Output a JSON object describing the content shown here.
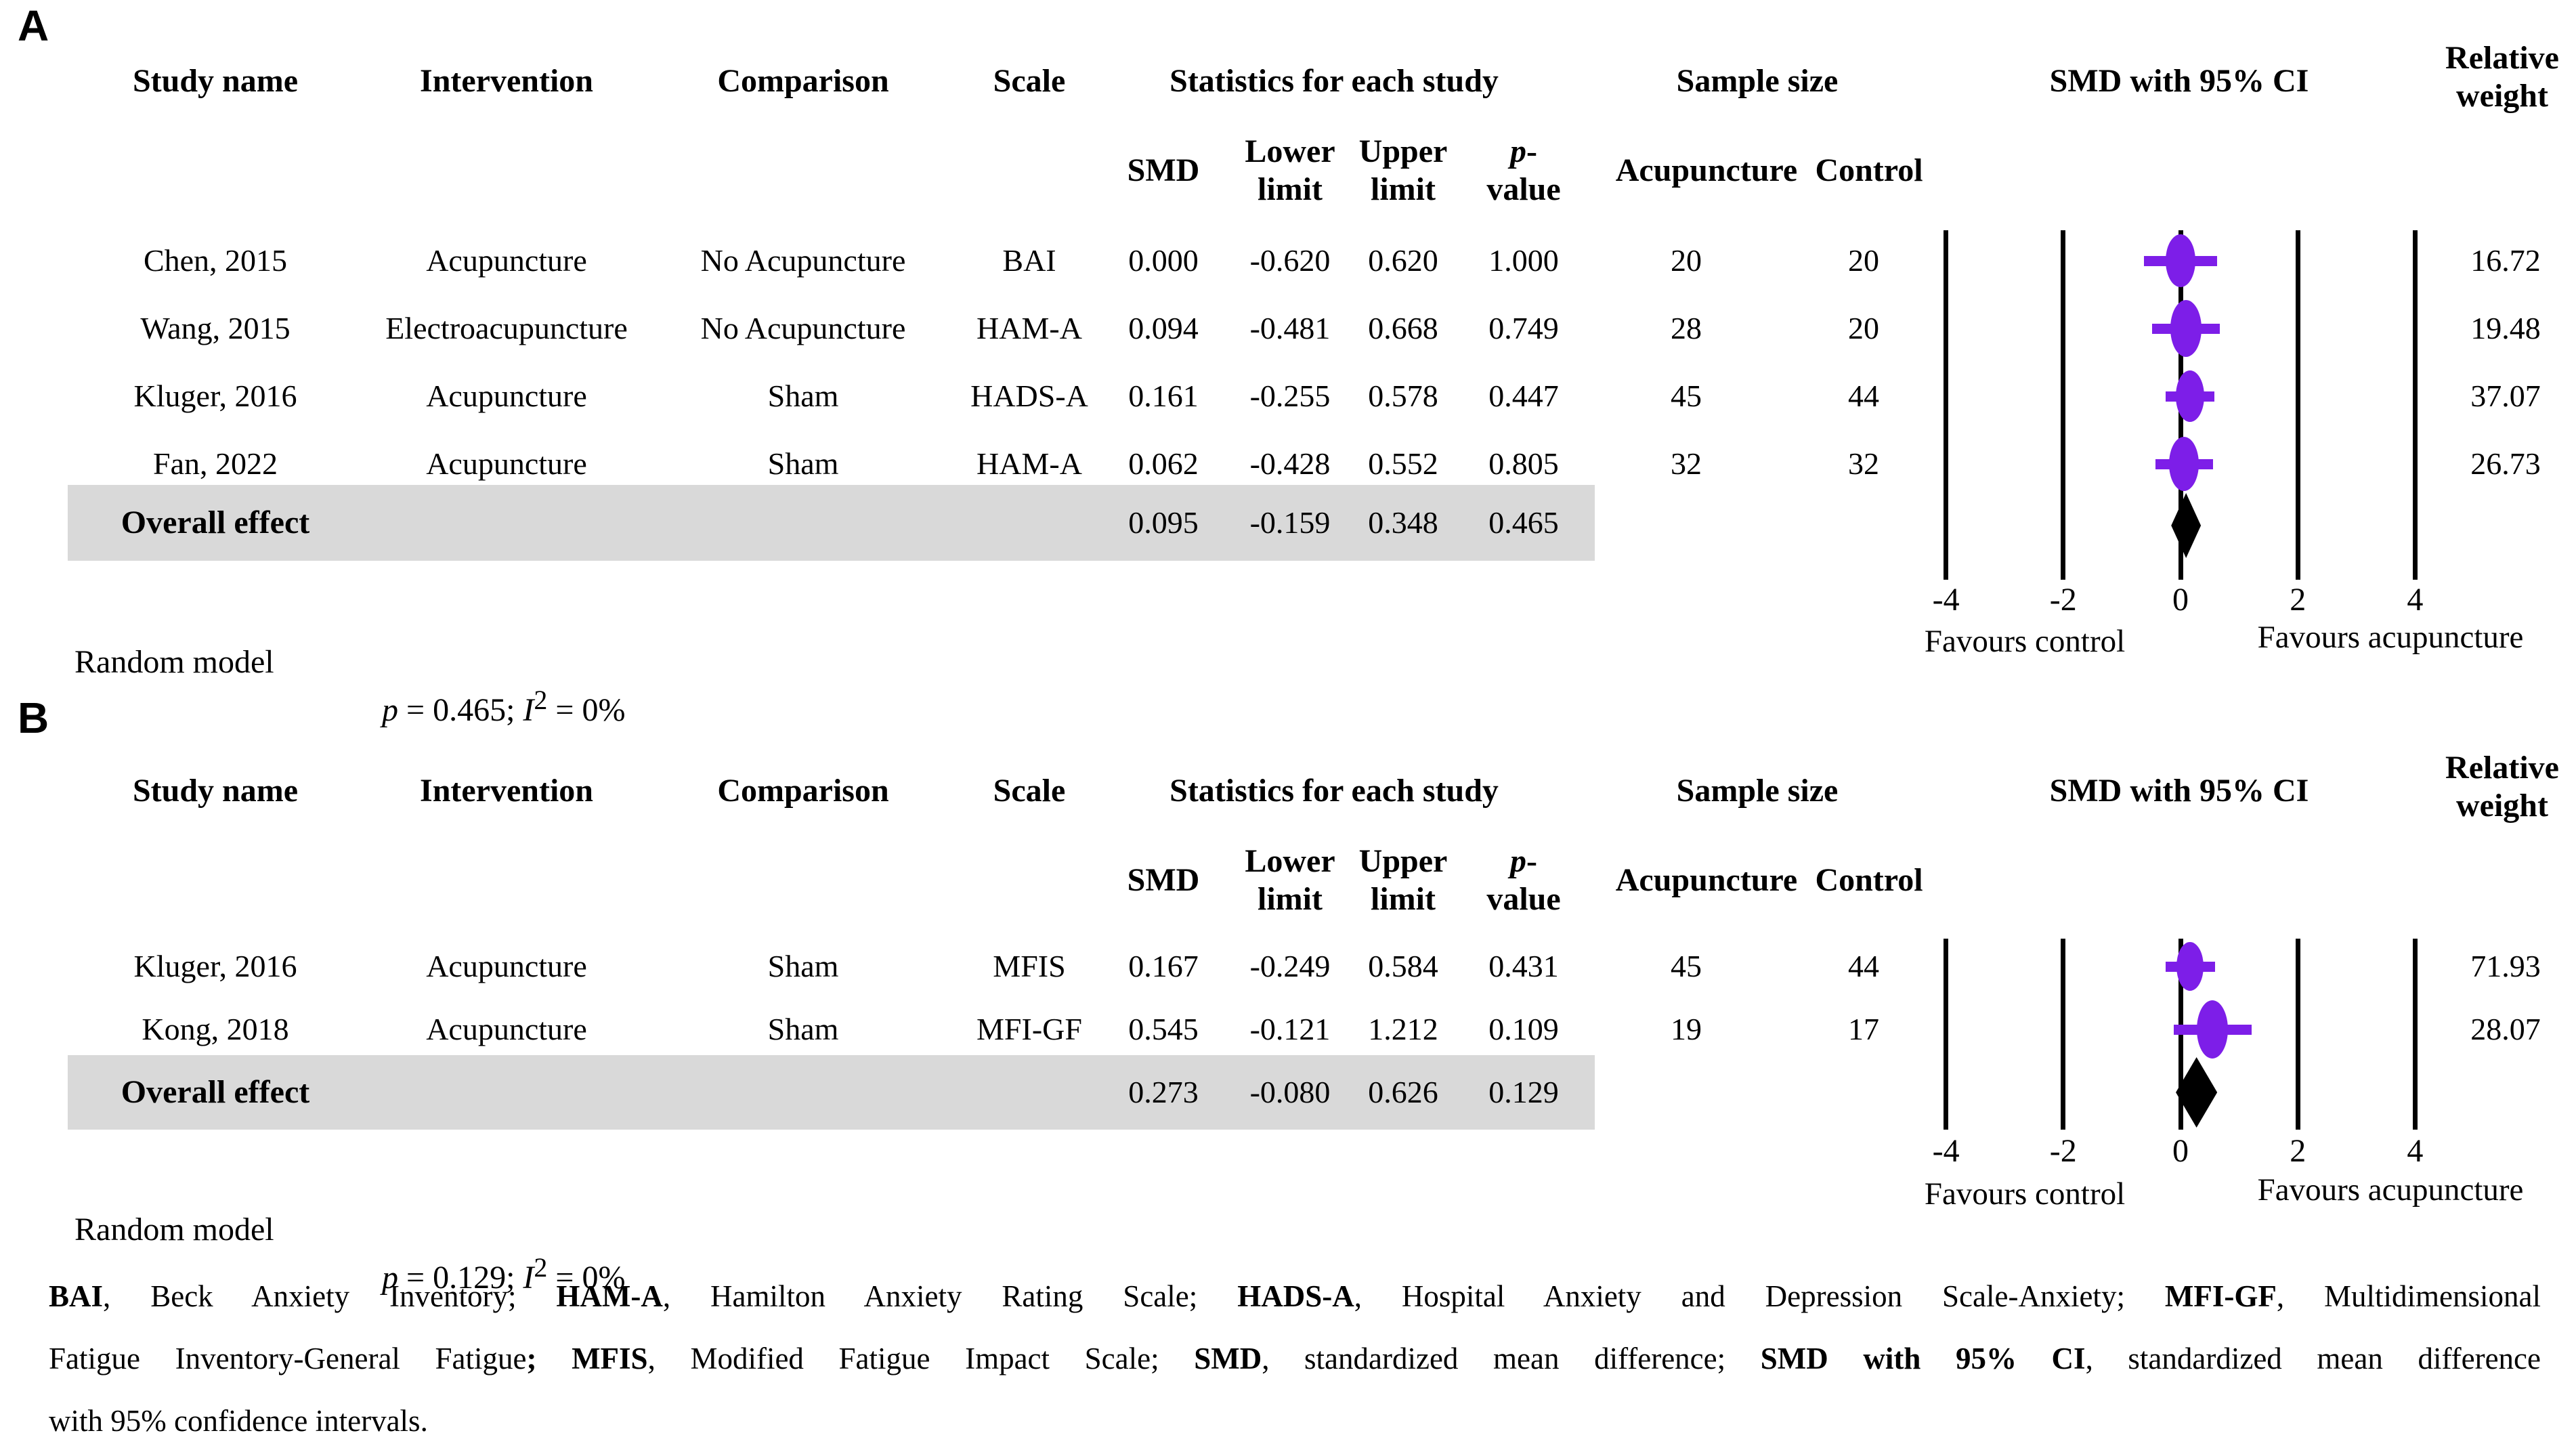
{
  "colors": {
    "marker_purple": "#7D1EE8",
    "overall_diamond_black": "#000000",
    "overall_row_background": "#D9D9D9"
  },
  "panels": [
    {
      "label": "A",
      "headers": {
        "study": "Study name",
        "intervention": "Intervention",
        "comparison": "Comparison",
        "scale": "Scale",
        "stats_group": "Statistics for each study",
        "smd": "SMD",
        "lower1": "Lower",
        "lower2": "limit",
        "upper1": "Upper",
        "upper2": "limit",
        "p_italic": "p",
        "p_hyphen": "-",
        "p_line2": "value",
        "sample_group": "Sample size",
        "acupuncture": "Acupuncture",
        "control": "Control",
        "ci_plot": "SMD with 95% CI",
        "weight1": "Relative",
        "weight2": "weight"
      },
      "rows": [
        {
          "study": "Chen, 2015",
          "intervention": "Acupuncture",
          "comparison": "No Acupuncture",
          "scale": "BAI",
          "smd": "0.000",
          "lower": "-0.620",
          "upper": "0.620",
          "p": "1.000",
          "acu": "20",
          "ctrl": "20",
          "weight": "16.72"
        },
        {
          "study": "Wang, 2015",
          "intervention": "Electroacupuncture",
          "comparison": "No Acupuncture",
          "scale": "HAM-A",
          "smd": "0.094",
          "lower": "-0.481",
          "upper": "0.668",
          "p": "0.749",
          "acu": "28",
          "ctrl": "20",
          "weight": "19.48"
        },
        {
          "study": "Kluger, 2016",
          "intervention": "Acupuncture",
          "comparison": "Sham",
          "scale": "HADS-A",
          "smd": "0.161",
          "lower": "-0.255",
          "upper": "0.578",
          "p": "0.447",
          "acu": "45",
          "ctrl": "44",
          "weight": "37.07"
        },
        {
          "study": "Fan, 2022",
          "intervention": "Acupuncture",
          "comparison": "Sham",
          "scale": "HAM-A",
          "smd": "0.062",
          "lower": "-0.428",
          "upper": "0.552",
          "p": "0.805",
          "acu": "32",
          "ctrl": "32",
          "weight": "26.73"
        }
      ],
      "overall": {
        "label": "Overall effect",
        "smd": "0.095",
        "lower": "-0.159",
        "upper": "0.348",
        "p": "0.465"
      },
      "axis": {
        "ticks": [
          "-4",
          "-2",
          "0",
          "2",
          "4"
        ],
        "left": "Favours control",
        "right": "Favours acupuncture"
      },
      "model": {
        "name": "Random model",
        "p_italic": "p",
        "p_text": " = 0.465; ",
        "i_italic": "I",
        "i_sup": "2",
        "i_text": " = 0%"
      }
    },
    {
      "label": "B",
      "headers": {
        "study": "Study name",
        "intervention": "Intervention",
        "comparison": "Comparison",
        "scale": "Scale",
        "stats_group": "Statistics for each study",
        "smd": "SMD",
        "lower1": "Lower",
        "lower2": "limit",
        "upper1": "Upper",
        "upper2": "limit",
        "p_italic": "p",
        "p_hyphen": "-",
        "p_line2": "value",
        "sample_group": "Sample size",
        "acupuncture": "Acupuncture",
        "control": "Control",
        "ci_plot": "SMD with 95% CI",
        "weight1": "Relative",
        "weight2": "weight"
      },
      "rows": [
        {
          "study": "Kluger, 2016",
          "intervention": "Acupuncture",
          "comparison": "Sham",
          "scale": "MFIS",
          "smd": "0.167",
          "lower": "-0.249",
          "upper": "0.584",
          "p": "0.431",
          "acu": "45",
          "ctrl": "44",
          "weight": "71.93"
        },
        {
          "study": "Kong, 2018",
          "intervention": "Acupuncture",
          "comparison": "Sham",
          "scale": "MFI-GF",
          "smd": "0.545",
          "lower": "-0.121",
          "upper": "1.212",
          "p": "0.109",
          "acu": "19",
          "ctrl": "17",
          "weight": "28.07"
        }
      ],
      "overall": {
        "label": "Overall effect",
        "smd": "0.273",
        "lower": "-0.080",
        "upper": "0.626",
        "p": "0.129"
      },
      "axis": {
        "ticks": [
          "-4",
          "-2",
          "0",
          "2",
          "4"
        ],
        "left": "Favours control",
        "right": "Favours acupuncture"
      },
      "model": {
        "name": "Random model",
        "p_italic": "p",
        "p_text": " = 0.129; ",
        "i_italic": "I",
        "i_sup": "2",
        "i_text": " = 0%"
      }
    }
  ],
  "footnote": {
    "line1": [
      "BAI",
      ", Beck Anxiety Inventory; ",
      "HAM-A",
      ", Hamilton Anxiety Rating Scale; ",
      "HADS-A",
      ", Hospital Anxiety and Depression Scale-Anxiety; ",
      "MFI-GF",
      ", Multidimensional"
    ],
    "line2": [
      "Fatigue Inventory-General Fatigue",
      "; MFIS",
      ", Modified Fatigue Impact Scale; ",
      "SMD",
      ", standardized mean difference; ",
      "SMD with 95% CI",
      ", standardized mean difference"
    ],
    "line3": "with 95% confidence intervals."
  },
  "chart_data": [
    {
      "type": "forest",
      "panel": "A",
      "title": "SMD with 95% CI",
      "xlim": [
        -4,
        4
      ],
      "x_ticks": [
        -4,
        -2,
        0,
        2,
        4
      ],
      "favours_left": "Favours control",
      "favours_right": "Favours acupuncture",
      "studies": [
        {
          "name": "Chen, 2015",
          "smd": 0.0,
          "lower": -0.62,
          "upper": 0.62,
          "p": 1.0,
          "n_acupuncture": 20,
          "n_control": 20,
          "weight": 16.72
        },
        {
          "name": "Wang, 2015",
          "smd": 0.094,
          "lower": -0.481,
          "upper": 0.668,
          "p": 0.749,
          "n_acupuncture": 28,
          "n_control": 20,
          "weight": 19.48
        },
        {
          "name": "Kluger, 2016",
          "smd": 0.161,
          "lower": -0.255,
          "upper": 0.578,
          "p": 0.447,
          "n_acupuncture": 45,
          "n_control": 44,
          "weight": 37.07
        },
        {
          "name": "Fan, 2022",
          "smd": 0.062,
          "lower": -0.428,
          "upper": 0.552,
          "p": 0.805,
          "n_acupuncture": 32,
          "n_control": 32,
          "weight": 26.73
        }
      ],
      "overall": {
        "smd": 0.095,
        "lower": -0.159,
        "upper": 0.348,
        "p": 0.465
      },
      "model": "Random model",
      "heterogeneity": "p = 0.465; I2 = 0%"
    },
    {
      "type": "forest",
      "panel": "B",
      "title": "SMD with 95% CI",
      "xlim": [
        -4,
        4
      ],
      "x_ticks": [
        -4,
        -2,
        0,
        2,
        4
      ],
      "favours_left": "Favours control",
      "favours_right": "Favours acupuncture",
      "studies": [
        {
          "name": "Kluger, 2016",
          "smd": 0.167,
          "lower": -0.249,
          "upper": 0.584,
          "p": 0.431,
          "n_acupuncture": 45,
          "n_control": 44,
          "weight": 71.93
        },
        {
          "name": "Kong, 2018",
          "smd": 0.545,
          "lower": -0.121,
          "upper": 1.212,
          "p": 0.109,
          "n_acupuncture": 19,
          "n_control": 17,
          "weight": 28.07
        }
      ],
      "overall": {
        "smd": 0.273,
        "lower": -0.08,
        "upper": 0.626,
        "p": 0.129
      },
      "model": "Random model",
      "heterogeneity": "p = 0.129; I2 = 0%"
    }
  ]
}
